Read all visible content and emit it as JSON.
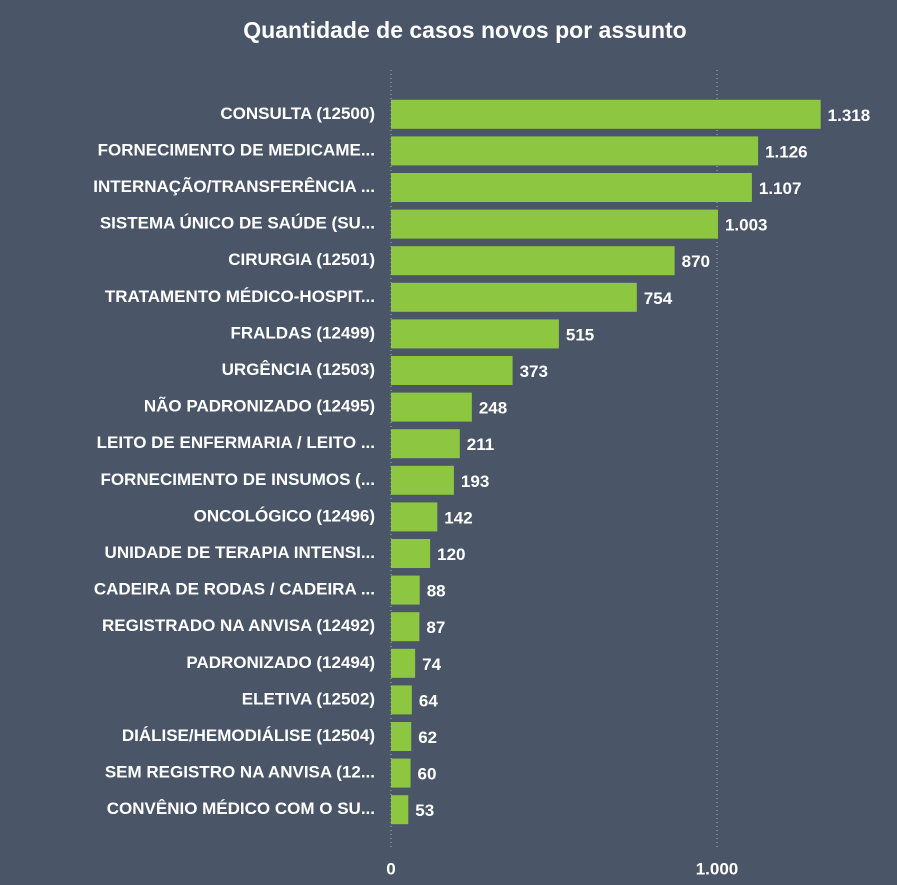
{
  "chart_data": {
    "type": "bar",
    "orientation": "horizontal",
    "title": "Quantidade de casos novos por assunto",
    "categories": [
      "CONSULTA (12500)",
      "FORNECIMENTO DE MEDICAME...",
      "INTERNAÇÃO/TRANSFERÊNCIA ...",
      "SISTEMA ÚNICO DE SAÚDE (SU...",
      "CIRURGIA (12501)",
      "TRATAMENTO MÉDICO-HOSPIT...",
      "FRALDAS (12499)",
      "URGÊNCIA (12503)",
      "NÃO PADRONIZADO (12495)",
      "LEITO DE ENFERMARIA / LEITO ...",
      "FORNECIMENTO DE INSUMOS (...",
      "ONCOLÓGICO (12496)",
      "UNIDADE DE TERAPIA INTENSI...",
      "CADEIRA DE RODAS / CADEIRA ...",
      "REGISTRADO NA ANVISA (12492)",
      "PADRONIZADO (12494)",
      "ELETIVA (12502)",
      "DIÁLISE/HEMODIÁLISE (12504)",
      "SEM REGISTRO NA ANVISA (12...",
      "CONVÊNIO MÉDICO COM O SU..."
    ],
    "values": [
      1318,
      1126,
      1107,
      1003,
      870,
      754,
      515,
      373,
      248,
      211,
      193,
      142,
      120,
      88,
      87,
      74,
      64,
      62,
      60,
      53
    ],
    "value_labels": [
      "1.318",
      "1.126",
      "1.107",
      "1.003",
      "870",
      "754",
      "515",
      "373",
      "248",
      "211",
      "193",
      "142",
      "120",
      "88",
      "87",
      "74",
      "64",
      "62",
      "60",
      "53"
    ],
    "color": "#8dc641",
    "xlim": [
      0,
      1500
    ],
    "xticks": [
      0,
      {
        "value": 1000,
        "label": "1.000"
      }
    ],
    "grid": true
  }
}
